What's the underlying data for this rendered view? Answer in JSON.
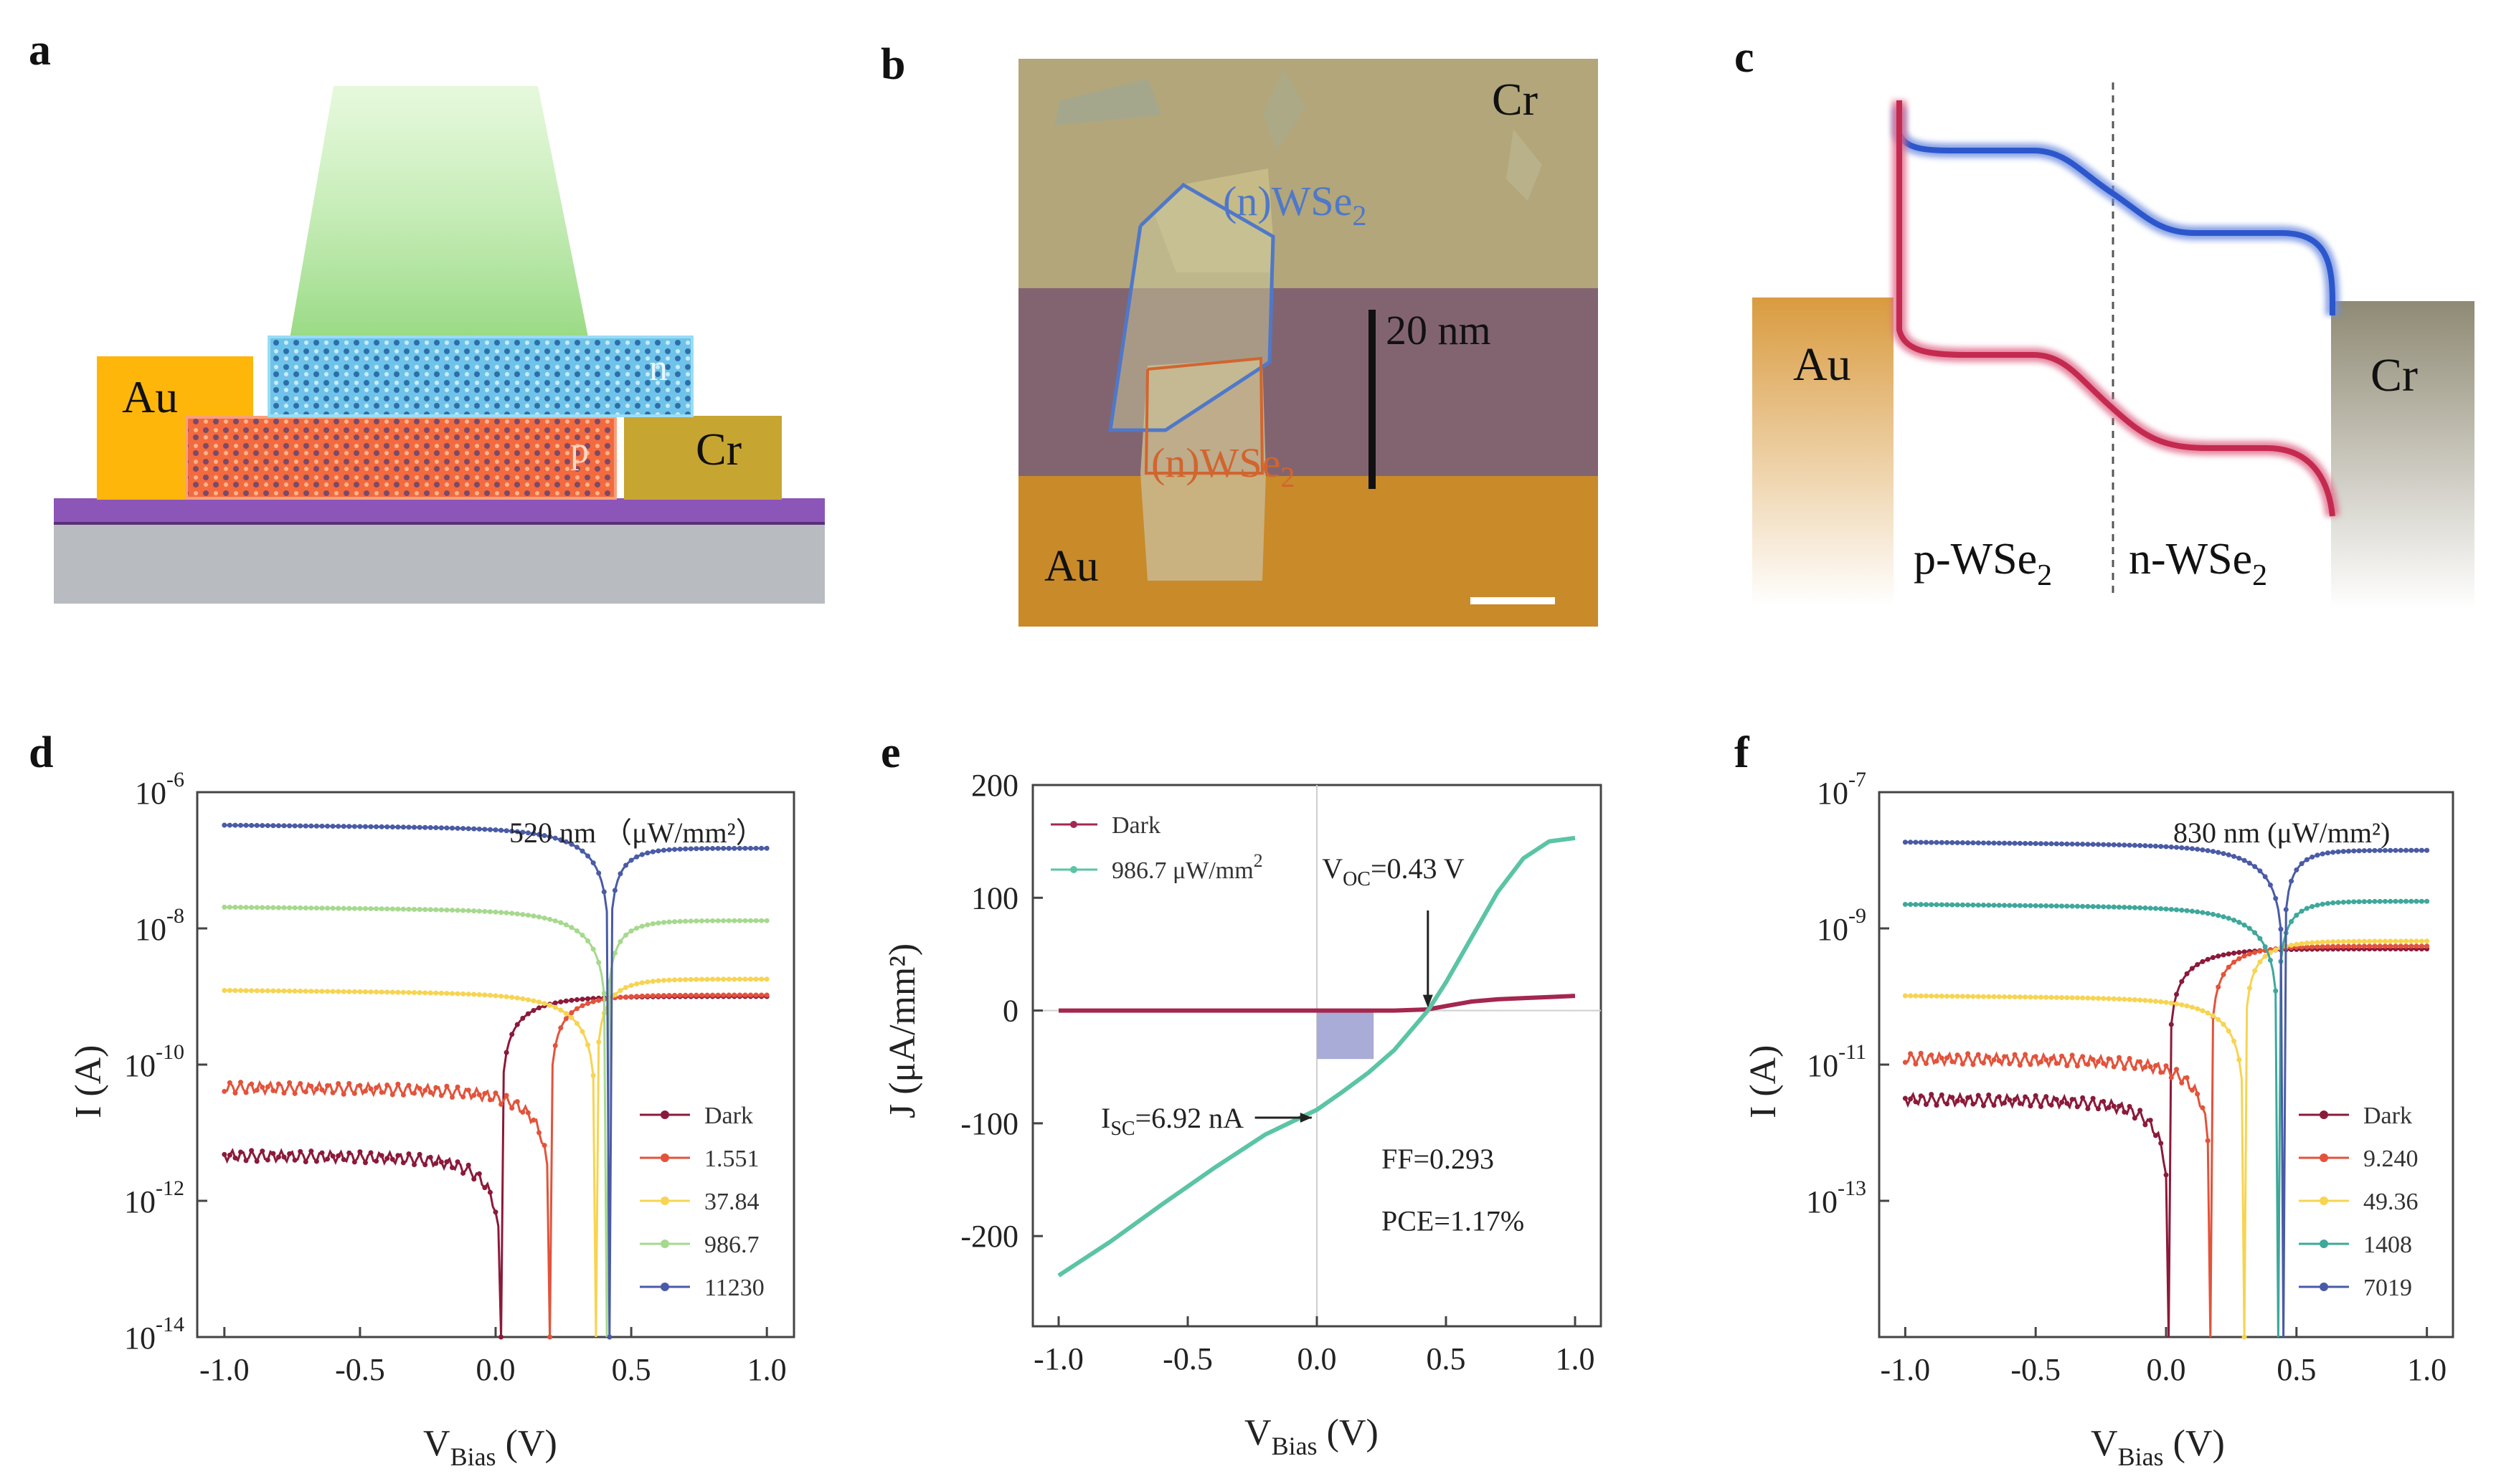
{
  "panels": {
    "a": {
      "letter": "a",
      "labels": {
        "au": "Au",
        "cr": "Cr",
        "n": "n",
        "p": "p"
      },
      "colors": {
        "au": "#ffb60a",
        "cr": "#c7a531",
        "n_layer": "#4fb3e3",
        "p_layer": "#f0643b",
        "substrate": "#b8bcc1",
        "oxide": "#8c56b8",
        "light": "#9fe08a"
      }
    },
    "b": {
      "letter": "b",
      "labels": {
        "cr": "Cr",
        "au": "Au",
        "n_wse": "(n)WSe",
        "n_wse_sub": "2",
        "n2_wse": "(n)WSe",
        "n2_wse_sub": "2",
        "thickness": "20 nm"
      }
    },
    "c": {
      "letter": "c",
      "labels": {
        "au": "Au",
        "cr": "Cr",
        "p_wse": "p-WSe",
        "p_sub": "2",
        "n_wse": "n-WSe",
        "n_sub": "2"
      }
    }
  },
  "chart_data": [
    {
      "panel": "d",
      "type": "line",
      "scale": "log-y",
      "title": "",
      "xlabel": "V",
      "xlabel_sub": "Bias",
      "xlabel_unit": " (V)",
      "ylabel": "I (A)",
      "xlim": [
        -1.1,
        1.1
      ],
      "ylim_exp": [
        -14,
        -6
      ],
      "xticks": [
        "-1.0",
        "-0.5",
        "0.0",
        "0.5",
        "1.0"
      ],
      "xtick_values": [
        -1.0,
        -0.5,
        0.0,
        0.5,
        1.0
      ],
      "yticks": [
        {
          "base": "10",
          "exp": "-6",
          "value": -6
        },
        {
          "base": "10",
          "exp": "-8",
          "value": -8
        },
        {
          "base": "10",
          "exp": "-10",
          "value": -10
        },
        {
          "base": "10",
          "exp": "-12",
          "value": -12
        },
        {
          "base": "10",
          "exp": "-14",
          "value": -14
        }
      ],
      "annotation": "520 nm  （μW/mm²）",
      "series": [
        {
          "name": "Dark",
          "color": "#8b1a3a",
          "v0": 0.02,
          "iLeft": 4.5e-12,
          "iRight": 1e-09
        },
        {
          "name": "1.551",
          "color": "#e3533b",
          "v0": 0.2,
          "iLeft": 4.5e-11,
          "iRight": 1.05e-09
        },
        {
          "name": "37.84",
          "color": "#f7d451",
          "v0": 0.37,
          "iLeft": 1.2e-09,
          "iRight": 1.8e-09
        },
        {
          "name": "986.7",
          "color": "#a6d98e",
          "v0": 0.41,
          "iLeft": 2e-08,
          "iRight": 1.3e-08
        },
        {
          "name": "11230",
          "color": "#4a5ba6",
          "v0": 0.42,
          "iLeft": 3.2e-07,
          "iRight": 1.5e-07
        }
      ]
    },
    {
      "panel": "e",
      "type": "line",
      "scale": "linear",
      "xlabel": "V",
      "xlabel_sub": "Bias",
      "xlabel_unit": " (V)",
      "ylabel": "J (μA/mm²)",
      "xlim": [
        -1.1,
        1.1
      ],
      "ylim": [
        -280,
        200
      ],
      "xticks": [
        "-1.0",
        "-0.5",
        "0.0",
        "0.5",
        "1.0"
      ],
      "xtick_values": [
        -1.0,
        -0.5,
        0.0,
        0.5,
        1.0
      ],
      "yticks": [
        "200",
        "100",
        "0",
        "-100",
        "-200"
      ],
      "ytick_values": [
        200,
        100,
        0,
        -100,
        -200
      ],
      "series": [
        {
          "name": "Dark",
          "color": "#a3274f",
          "x": [
            -1.0,
            -0.5,
            0.0,
            0.3,
            0.43,
            0.5,
            0.6,
            0.7,
            0.8,
            0.9,
            1.0
          ],
          "y": [
            0,
            0,
            0,
            0,
            1,
            4,
            8,
            10,
            11,
            12,
            13
          ]
        },
        {
          "name": "986.7 μW/mm²",
          "color": "#5bc4a5",
          "x": [
            -1.0,
            -0.8,
            -0.6,
            -0.4,
            -0.2,
            0.0,
            0.1,
            0.2,
            0.3,
            0.43,
            0.5,
            0.6,
            0.7,
            0.8,
            0.9,
            1.0
          ],
          "y": [
            -235,
            -205,
            -172,
            -140,
            -110,
            -88,
            -72,
            -55,
            -35,
            0,
            25,
            65,
            105,
            135,
            150,
            153
          ]
        }
      ],
      "legend": {
        "dark": "Dark",
        "light": "986.7 μW/mm"
      },
      "annotations": {
        "voc_main": "V",
        "voc_sub": "OC",
        "voc_val": "=0.43 V",
        "isc_main": "I",
        "isc_sub": "SC",
        "isc_val": "=6.92 nA",
        "ff": "FF=0.293",
        "pce": "PCE=1.17%"
      },
      "voc": 0.43,
      "isc_y": -95,
      "mpp_box": {
        "x": [
          0.0,
          0.22
        ],
        "y": [
          -43,
          0
        ]
      }
    },
    {
      "panel": "f",
      "type": "line",
      "scale": "log-y",
      "xlabel": "V",
      "xlabel_sub": "Bias",
      "xlabel_unit": " (V)",
      "ylabel": "I (A)",
      "xlim": [
        -1.1,
        1.1
      ],
      "ylim_exp": [
        -15,
        -7
      ],
      "xticks": [
        "-1.0",
        "-0.5",
        "0.0",
        "0.5",
        "1.0"
      ],
      "xtick_values": [
        -1.0,
        -0.5,
        0.0,
        0.5,
        1.0
      ],
      "yticks": [
        {
          "base": "10",
          "exp": "-7",
          "value": -7
        },
        {
          "base": "10",
          "exp": "-9",
          "value": -9
        },
        {
          "base": "10",
          "exp": "-11",
          "value": -11
        },
        {
          "base": "10",
          "exp": "-13",
          "value": -13
        }
      ],
      "annotation": "830 nm (μW/mm²)",
      "series": [
        {
          "name": "Dark",
          "color": "#8b1a3a",
          "v0": 0.01,
          "iLeft": 3e-12,
          "iRight": 5e-10
        },
        {
          "name": "9.240",
          "color": "#e3533b",
          "v0": 0.17,
          "iLeft": 1.2e-11,
          "iRight": 5.5e-10
        },
        {
          "name": "49.36",
          "color": "#f7d451",
          "v0": 0.3,
          "iLeft": 1e-10,
          "iRight": 6.5e-10
        },
        {
          "name": "1408",
          "color": "#3ea89b",
          "v0": 0.43,
          "iLeft": 2.2e-09,
          "iRight": 2.5e-09
        },
        {
          "name": "7019",
          "color": "#4a5ba6",
          "v0": 0.45,
          "iLeft": 1.8e-08,
          "iRight": 1.4e-08
        }
      ]
    }
  ]
}
